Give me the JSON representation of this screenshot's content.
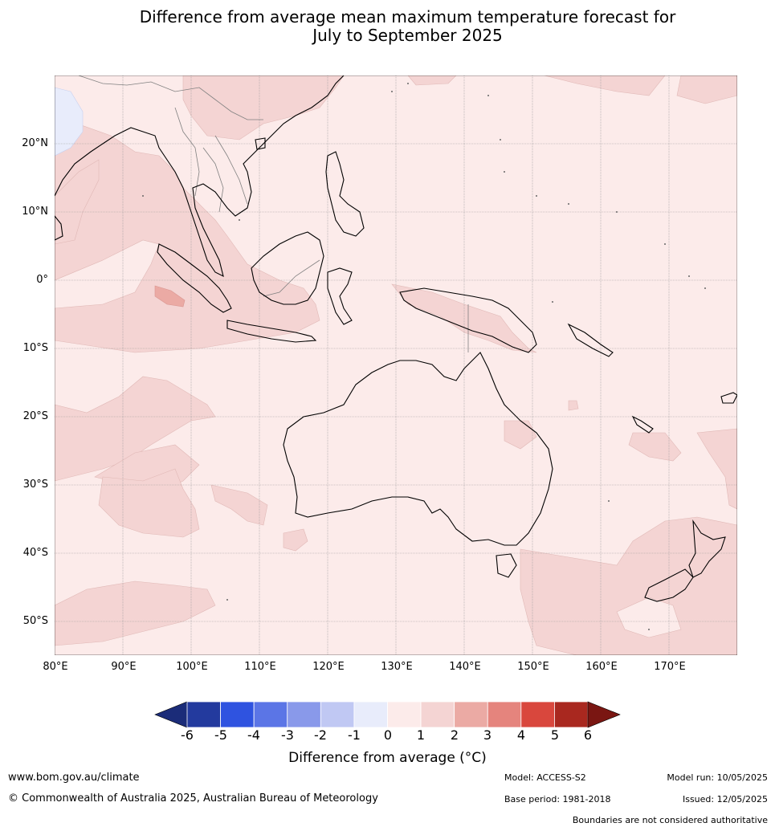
{
  "title": {
    "line1": "Difference from average mean maximum temperature forecast for",
    "line2": "July to September 2025"
  },
  "map": {
    "lat_labels": [
      "20°N",
      "10°N",
      "0°",
      "10°S",
      "20°S",
      "30°S",
      "40°S",
      "50°S"
    ],
    "lon_labels": [
      "80°E",
      "90°E",
      "100°E",
      "110°E",
      "120°E",
      "130°E",
      "140°E",
      "150°E",
      "160°E",
      "170°E"
    ],
    "background_color": "#fcebea",
    "anomaly_0_1_color": "#fcebea",
    "anomaly_1_2_color": "#f4d4d3",
    "anomaly_2_3_color": "#ebaaa4",
    "anomaly_neg1_0_color": "#e8ecfb",
    "coastline_color": "#000000",
    "border_color": "#808080"
  },
  "colorbar": {
    "ticks": [
      "-6",
      "-5",
      "-4",
      "-3",
      "-2",
      "-1",
      "0",
      "1",
      "2",
      "3",
      "4",
      "5",
      "6"
    ],
    "colors": [
      "#233a9e",
      "#2f53e0",
      "#5b75e6",
      "#8999ea",
      "#c0c8f3",
      "#e8ecfb",
      "#fcebea",
      "#f4d4d3",
      "#ebaaa4",
      "#e5847d",
      "#d9473d",
      "#a9281f"
    ],
    "under_color": "#1b2c79",
    "over_color": "#7a1612",
    "label": "Difference from average (°C)"
  },
  "footer": {
    "website": "www.bom.gov.au/climate",
    "copyright": "© Commonwealth of Australia 2025, Australian Bureau of Meteorology",
    "model": "Model: ACCESS-S2",
    "base_period": "Base period: 1981-2018",
    "model_run": "Model run: 10/05/2025",
    "issued": "Issued: 12/05/2025",
    "disclaimer": "Boundaries are not considered authoritative"
  }
}
